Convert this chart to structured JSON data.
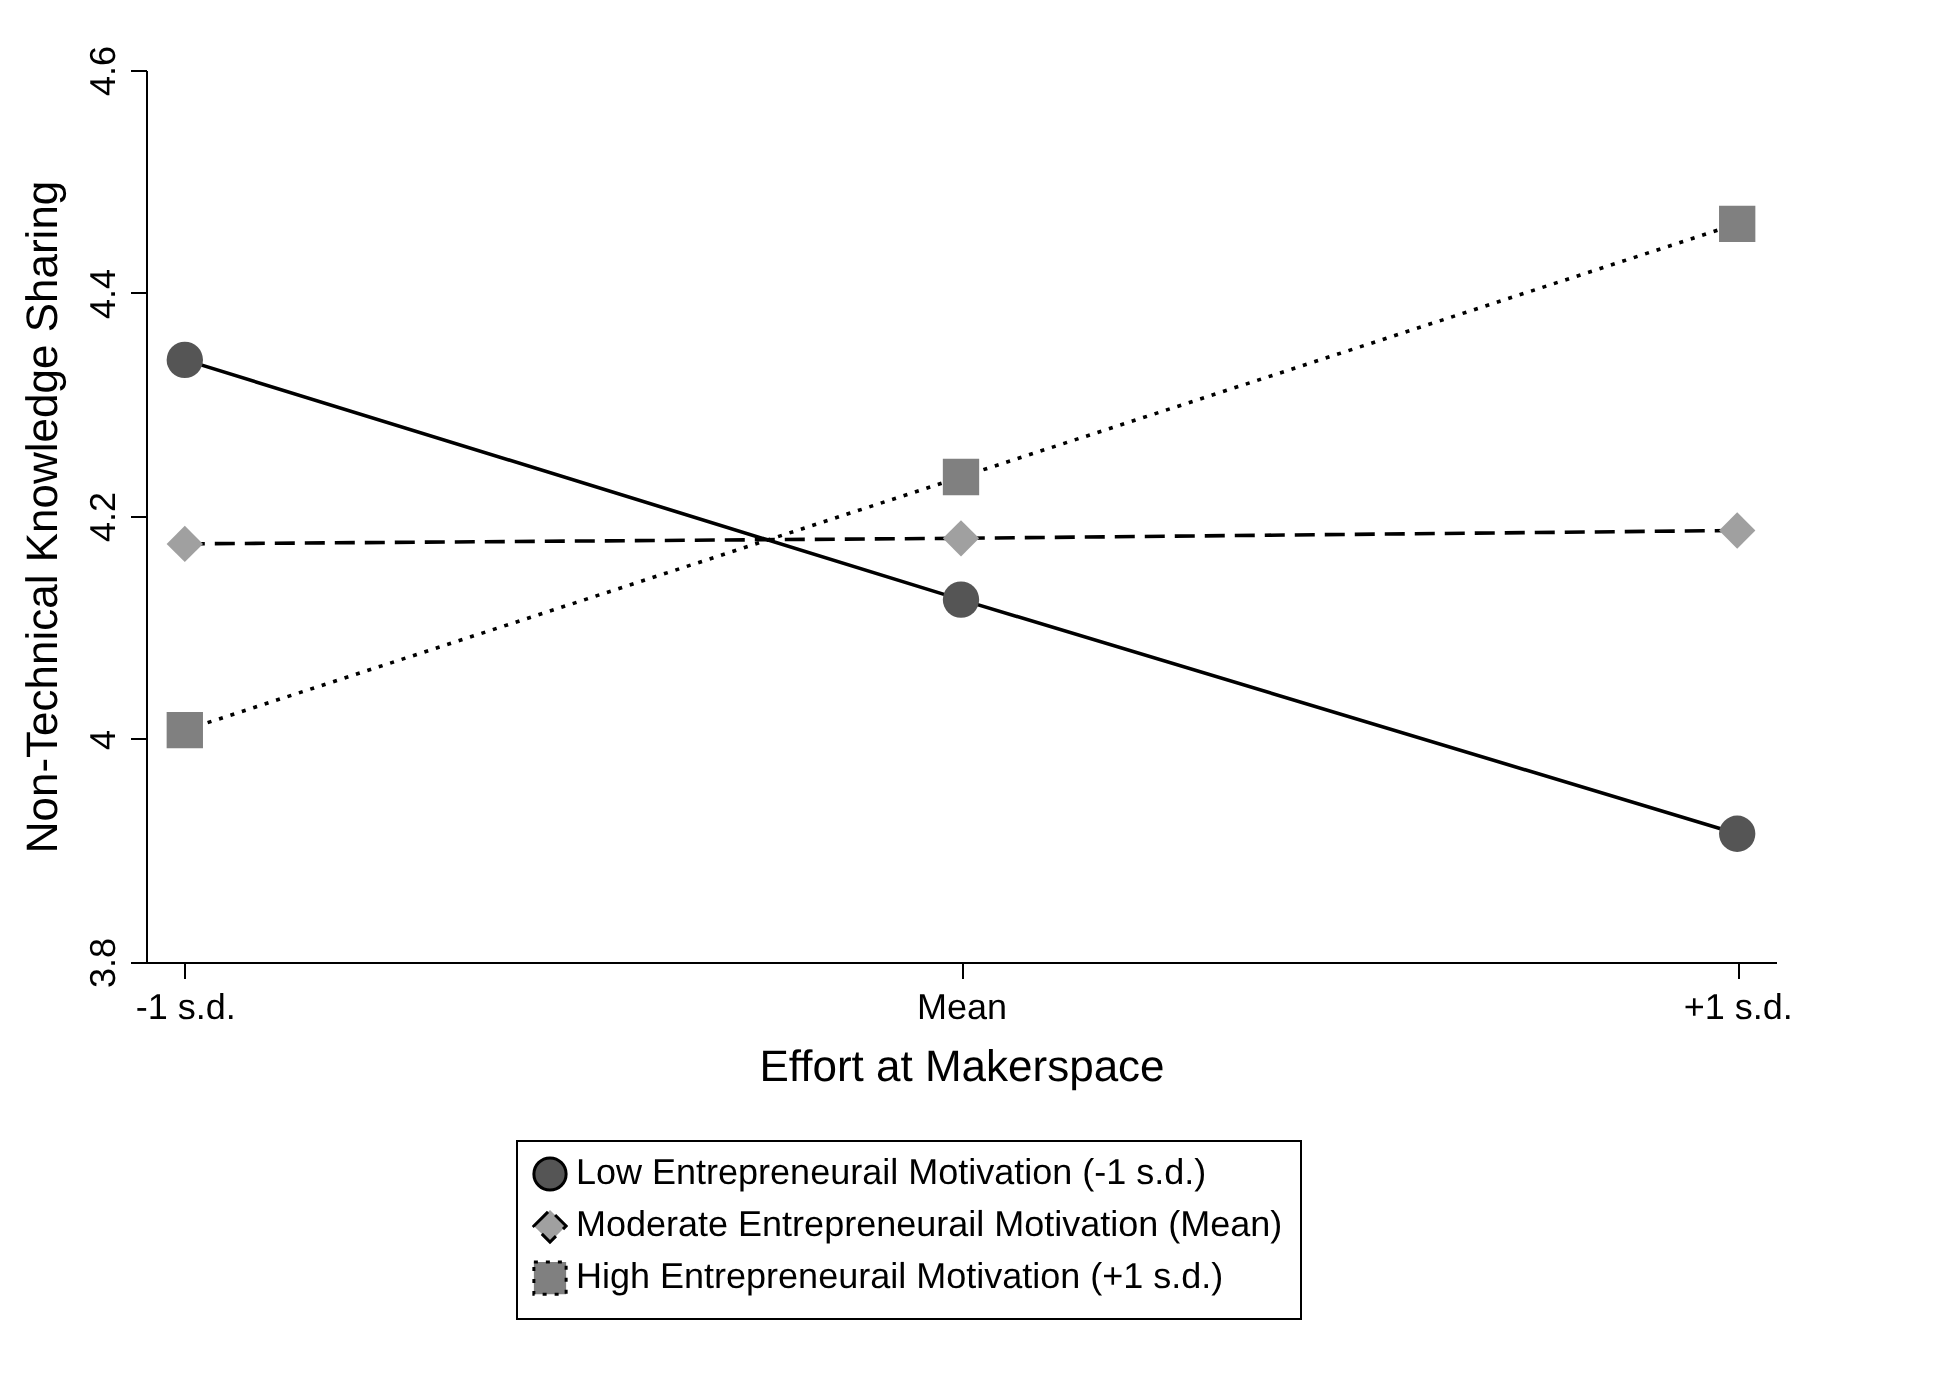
{
  "chart_data": {
    "type": "line",
    "xlabel": "Effort at Makerspace",
    "ylabel": "Non-Technical Knowledge Sharing",
    "categories": [
      "-1 s.d.",
      "Mean",
      "+1 s.d."
    ],
    "series": [
      {
        "name": "Low Entrepreneurail Motivation (-1 s.d.)",
        "color": "#555555",
        "marker": "circle",
        "line_style": "solid",
        "values": [
          4.34,
          4.125,
          3.915
        ]
      },
      {
        "name": "Moderate Entrepreneurail Motivation (Mean)",
        "color": "#a0a0a0",
        "marker": "diamond",
        "line_style": "dashed",
        "values": [
          4.175,
          4.18,
          4.187
        ]
      },
      {
        "name": "High Entrepreneurail Motivation (+1 s.d.)",
        "color": "#808080",
        "marker": "square",
        "line_style": "dotted",
        "values": [
          4.008,
          4.235,
          4.462
        ]
      }
    ],
    "ylim": [
      3.8,
      4.6
    ],
    "yticks": [
      3.8,
      4,
      4.2,
      4.4,
      4.6
    ],
    "grid": false,
    "legend": "bottom"
  }
}
